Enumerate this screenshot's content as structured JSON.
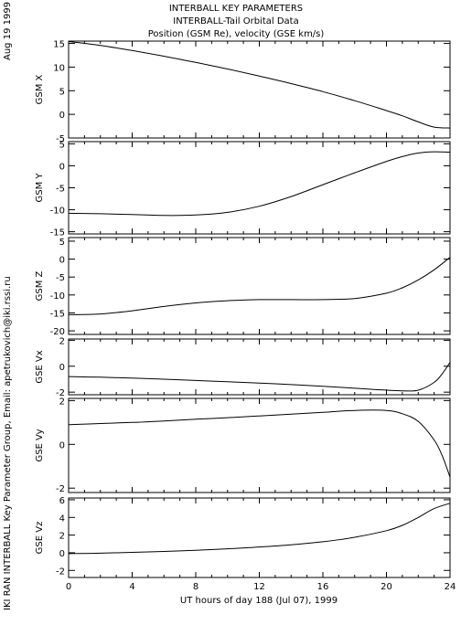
{
  "header": {
    "line1": "INTERBALL KEY PARAMETERS",
    "line2": "INTERBALL-Tail Orbital Data",
    "line3": "Position (GSM Re), velocity (GSE km/s)"
  },
  "side_date": "Aug 19 1999",
  "side_credit": "IKI RAN INTERBALL Key Parameter Group, Email: apetrukovich@iki.rssi.ru",
  "xaxis_label": "UT hours of day 188 (Jul 07), 1999",
  "chart_data": {
    "type": "line",
    "x_ticks": [
      0,
      4,
      8,
      12,
      16,
      20,
      24
    ],
    "xlim": [
      0,
      24
    ],
    "panels": [
      {
        "ylabel": "GSM X",
        "ylim": [
          -5,
          15.5
        ],
        "y_ticks": [
          -5,
          0,
          5,
          10,
          15
        ],
        "x": [
          0,
          2,
          4,
          6,
          8,
          10,
          12,
          14,
          16,
          18,
          20,
          21,
          22,
          23,
          24
        ],
        "y": [
          15.4,
          14.6,
          13.5,
          12.3,
          11.0,
          9.6,
          8.1,
          6.5,
          4.8,
          2.9,
          0.8,
          -0.3,
          -1.6,
          -2.7,
          -2.9
        ]
      },
      {
        "ylabel": "GSM Y",
        "ylim": [
          -15.5,
          5.5
        ],
        "y_ticks": [
          -15,
          -10,
          -5,
          0,
          5
        ],
        "x": [
          0,
          2,
          4,
          6,
          8,
          10,
          12,
          14,
          16,
          18,
          20,
          21,
          22,
          23,
          24
        ],
        "y": [
          -10.8,
          -10.9,
          -11.1,
          -11.3,
          -11.2,
          -10.6,
          -9.2,
          -7.0,
          -4.3,
          -1.6,
          1.0,
          2.1,
          2.9,
          3.2,
          3.1
        ]
      },
      {
        "ylabel": "GSM Z",
        "ylim": [
          -21,
          6
        ],
        "y_ticks": [
          -20,
          -15,
          -10,
          -5,
          0,
          5
        ],
        "x": [
          0,
          2,
          4,
          6,
          8,
          10,
          12,
          14,
          16,
          18,
          20,
          21,
          22,
          23,
          24
        ],
        "y": [
          -15.5,
          -15.3,
          -14.4,
          -13.2,
          -12.2,
          -11.6,
          -11.3,
          -11.3,
          -11.3,
          -11.0,
          -9.5,
          -8.0,
          -5.8,
          -3.0,
          0.5
        ]
      },
      {
        "ylabel": "GSE Vx",
        "ylim": [
          -2.2,
          2.1
        ],
        "y_ticks": [
          -2,
          0,
          2
        ],
        "x": [
          0,
          2,
          4,
          6,
          8,
          10,
          12,
          14,
          16,
          18,
          20,
          21,
          22,
          23,
          23.5,
          24
        ],
        "y": [
          -0.8,
          -0.85,
          -0.92,
          -1.0,
          -1.1,
          -1.2,
          -1.3,
          -1.42,
          -1.55,
          -1.7,
          -1.85,
          -1.9,
          -1.85,
          -1.25,
          -0.6,
          0.3
        ]
      },
      {
        "ylabel": "GSE Vy",
        "ylim": [
          -2.2,
          2.1
        ],
        "y_ticks": [
          -2,
          0,
          2
        ],
        "x": [
          0,
          2,
          4,
          6,
          8,
          10,
          12,
          14,
          16,
          18,
          20,
          21,
          22,
          23,
          23.5,
          24
        ],
        "y": [
          0.9,
          0.95,
          1.0,
          1.07,
          1.15,
          1.22,
          1.3,
          1.38,
          1.46,
          1.55,
          1.55,
          1.4,
          1.05,
          0.2,
          -0.5,
          -1.5
        ]
      },
      {
        "ylabel": "GSE Vz",
        "ylim": [
          -2.8,
          6.2
        ],
        "y_ticks": [
          -2,
          0,
          2,
          4,
          6
        ],
        "x": [
          0,
          2,
          4,
          6,
          8,
          10,
          12,
          14,
          16,
          18,
          20,
          21,
          22,
          23,
          24
        ],
        "y": [
          -0.1,
          -0.05,
          0.05,
          0.15,
          0.28,
          0.45,
          0.65,
          0.9,
          1.25,
          1.75,
          2.5,
          3.1,
          4.0,
          5.0,
          5.6
        ]
      }
    ]
  }
}
